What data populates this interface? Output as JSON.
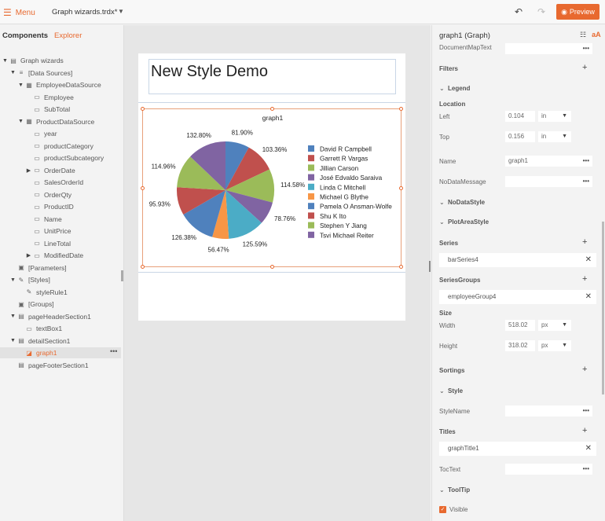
{
  "topbar": {
    "menu_label": "Menu",
    "file_title": "Graph wizards.trdx*",
    "preview_label": "Preview"
  },
  "left": {
    "tabs": {
      "components": "Components",
      "explorer": "Explorer"
    },
    "tree": [
      {
        "label": "Graph wizards",
        "indent": 0,
        "toggle": "▼",
        "icon": "report-icon"
      },
      {
        "label": "[Data Sources]",
        "indent": 1,
        "toggle": "▼",
        "icon": "datasources-icon"
      },
      {
        "label": "EmployeeDataSource",
        "indent": 2,
        "toggle": "▼",
        "icon": "datasource-icon"
      },
      {
        "label": "Employee",
        "indent": 3,
        "toggle": "",
        "icon": "field-icon"
      },
      {
        "label": "SubTotal",
        "indent": 3,
        "toggle": "",
        "icon": "field-icon"
      },
      {
        "label": "ProductDataSource",
        "indent": 2,
        "toggle": "▼",
        "icon": "datasource-icon"
      },
      {
        "label": "year",
        "indent": 3,
        "toggle": "",
        "icon": "field-icon"
      },
      {
        "label": "productCategory",
        "indent": 3,
        "toggle": "",
        "icon": "field-icon"
      },
      {
        "label": "productSubcategory",
        "indent": 3,
        "toggle": "",
        "icon": "field-icon"
      },
      {
        "label": "OrderDate",
        "indent": 3,
        "toggle": "▶",
        "icon": "field-icon"
      },
      {
        "label": "SalesOrderId",
        "indent": 3,
        "toggle": "",
        "icon": "field-icon"
      },
      {
        "label": "OrderQty",
        "indent": 3,
        "toggle": "",
        "icon": "field-icon"
      },
      {
        "label": "ProductID",
        "indent": 3,
        "toggle": "",
        "icon": "field-icon"
      },
      {
        "label": "Name",
        "indent": 3,
        "toggle": "",
        "icon": "field-icon"
      },
      {
        "label": "UnitPrice",
        "indent": 3,
        "toggle": "",
        "icon": "field-icon"
      },
      {
        "label": "LineTotal",
        "indent": 3,
        "toggle": "",
        "icon": "field-icon"
      },
      {
        "label": "ModifiedDate",
        "indent": 3,
        "toggle": "▶",
        "icon": "field-icon"
      },
      {
        "label": "[Parameters]",
        "indent": 1,
        "toggle": "",
        "icon": "parameters-icon"
      },
      {
        "label": "[Styles]",
        "indent": 1,
        "toggle": "▼",
        "icon": "styles-icon"
      },
      {
        "label": "styleRule1",
        "indent": 2,
        "toggle": "",
        "icon": "style-rule-icon"
      },
      {
        "label": "[Groups]",
        "indent": 1,
        "toggle": "",
        "icon": "groups-icon"
      },
      {
        "label": "pageHeaderSection1",
        "indent": 1,
        "toggle": "▼",
        "icon": "section-icon"
      },
      {
        "label": "textBox1",
        "indent": 2,
        "toggle": "",
        "icon": "textbox-icon"
      },
      {
        "label": "detailSection1",
        "indent": 1,
        "toggle": "▼",
        "icon": "section-icon"
      },
      {
        "label": "graph1",
        "indent": 2,
        "toggle": "",
        "icon": "graph-icon",
        "selected": true
      },
      {
        "label": "pageFooterSection1",
        "indent": 1,
        "toggle": "",
        "icon": "section-icon"
      }
    ],
    "more_label": "•••"
  },
  "canvas": {
    "report_title": "New Style Demo"
  },
  "chart_data": {
    "type": "pie",
    "title": "graph1",
    "series": [
      {
        "name": "David R Campbell",
        "value": 81.9,
        "label": "81.90%",
        "color": "#4f81bd"
      },
      {
        "name": "Garrett R Vargas",
        "value": 103.36,
        "label": "103.36%",
        "color": "#c0504d"
      },
      {
        "name": "Jillian  Carson",
        "value": 114.58,
        "label": "114.58%",
        "color": "#9bbb59"
      },
      {
        "name": "José Edvaldo Saraiva",
        "value": 78.76,
        "label": "78.76%",
        "color": "#8064a2"
      },
      {
        "name": "Linda C Mitchell",
        "value": 125.59,
        "label": "125.59%",
        "color": "#4bacc6"
      },
      {
        "name": "Michael G Blythe",
        "value": 56.47,
        "label": "56.47%",
        "color": "#f79646"
      },
      {
        "name": "Pamela O Ansman-Wolfe",
        "value": 126.38,
        "label": "126.38%",
        "color": "#4f81bd"
      },
      {
        "name": "Shu K Ito",
        "value": 95.93,
        "label": "95.93%",
        "color": "#c0504d"
      },
      {
        "name": "Stephen Y Jiang",
        "value": 114.96,
        "label": "114.96%",
        "color": "#9bbb59"
      },
      {
        "name": "Tsvi Michael Reiter",
        "value": 132.8,
        "label": "132.80%",
        "color": "#8064a2"
      }
    ],
    "legend_position": "right"
  },
  "right": {
    "title": "graph1 (Graph)",
    "rows": {
      "document_map_text": "DocumentMapText",
      "filters": "Filters",
      "legend": "Legend",
      "location": "Location",
      "left": "Left",
      "left_value": "0.104",
      "left_unit": "in",
      "top": "Top",
      "top_value": "0.156",
      "top_unit": "in",
      "name": "Name",
      "name_value": "graph1",
      "no_data_message": "NoDataMessage",
      "no_data_style": "NoDataStyle",
      "plot_area_style": "PlotAreaStyle",
      "series": "Series",
      "series_item": "barSeries4",
      "series_groups": "SeriesGroups",
      "series_groups_item": "employeeGroup4",
      "size": "Size",
      "width": "Width",
      "width_value": "518.02",
      "width_unit": "px",
      "height": "Height",
      "height_value": "318.02",
      "height_unit": "px",
      "sortings": "Sortings",
      "style": "Style",
      "style_name": "StyleName",
      "titles": "Titles",
      "titles_item": "graphTitle1",
      "toc_text": "TocText",
      "tooltip": "ToolTip",
      "visible": "Visible"
    }
  },
  "colors": {
    "accent": "#e8692f",
    "selection_border": "#e8a07a"
  }
}
